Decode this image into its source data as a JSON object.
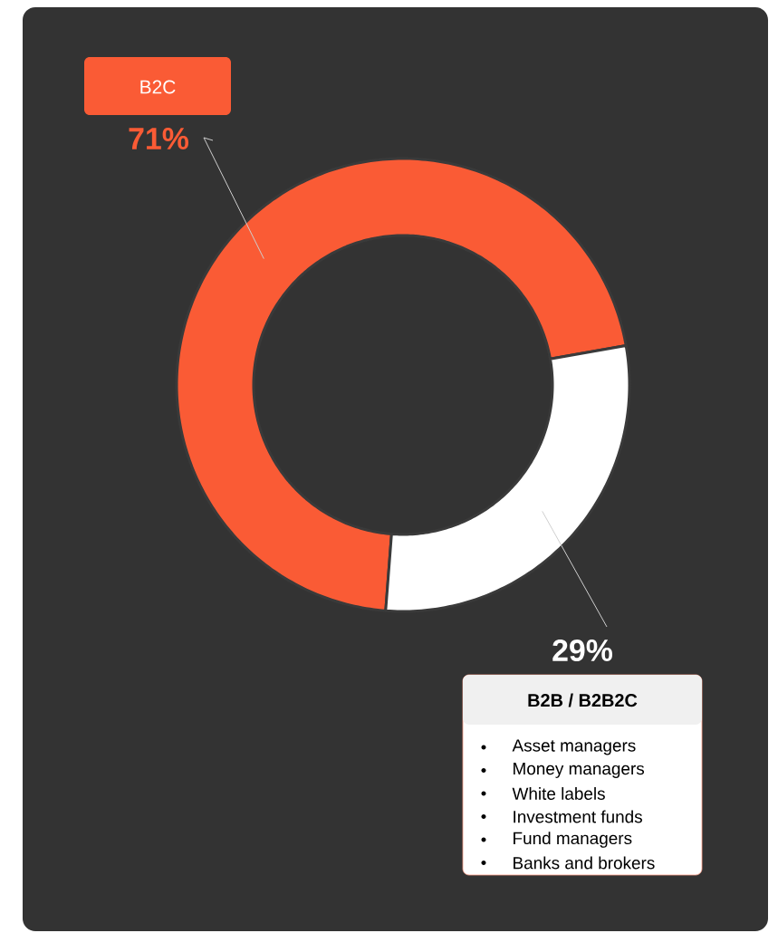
{
  "chart_data": {
    "type": "donut",
    "categories": [
      "B2C",
      "B2B / B2B2C"
    ],
    "values": [
      71,
      29
    ],
    "colors": [
      "#fa5b35",
      "#ffffff"
    ],
    "value_labels": [
      "71%",
      "29%"
    ],
    "annotations": [
      "Asset managers",
      "Money managers",
      "White labels",
      "Investment funds",
      "Fund managers",
      "Banks and brokers"
    ]
  }
}
